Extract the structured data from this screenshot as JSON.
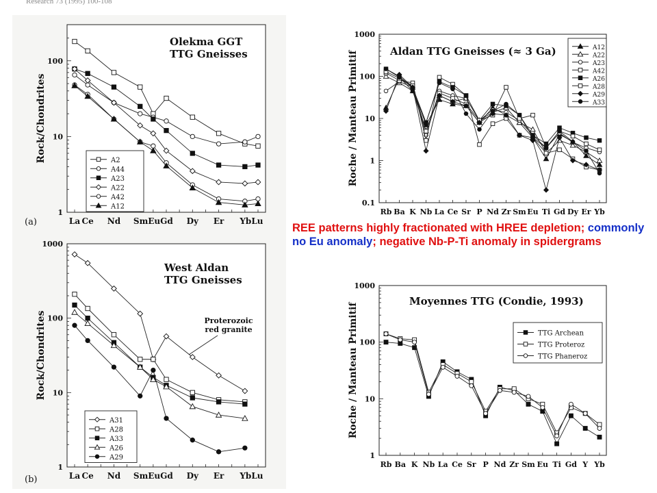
{
  "source_ref": "Research 73 (1995) 100-108",
  "note": {
    "part1": "REE patterns highly fractionated with HREE depletion; ",
    "part2": "commonly no Eu anomaly",
    "part3": "; negative Nb-P-Ti anomaly in spidergrams",
    "colors": {
      "main": "#e01010",
      "highlight": "#1530c8"
    }
  },
  "chart_data": [
    {
      "id": "olekma",
      "type": "line",
      "panel_label": "(a)",
      "title": "Olekma GGT",
      "subtitle": "TTG Gneisses",
      "ylabel": "Rock/Chondrites",
      "xlabel": "",
      "log_y": true,
      "ylim": [
        1,
        300
      ],
      "y_tick_labels": [
        "1",
        "10",
        "100"
      ],
      "y_tick_values": [
        1,
        10,
        100
      ],
      "x_positions": [
        "La",
        "Ce",
        "Pr",
        "Nd",
        "Pm",
        "Sm",
        "Eu",
        "Gd",
        "Tb",
        "Dy",
        "Ho",
        "Er",
        "Tm",
        "Yb",
        "Lu"
      ],
      "x_tick_labels": [
        "La",
        "Ce",
        "Nd",
        "Sm",
        "Eu",
        "Gd",
        "Dy",
        "Er",
        "Yb",
        "Lu"
      ],
      "x_tick_labels_display": [
        "La",
        "Ce",
        "Nd",
        "SmEuGd",
        "Dy",
        "Er",
        "YbLu"
      ],
      "legend_position": "bottom-left",
      "series": [
        {
          "name": "A2",
          "marker": "square-open",
          "values": [
            180,
            135,
            null,
            70,
            null,
            45,
            20,
            32,
            null,
            18,
            null,
            11,
            null,
            8,
            7.5
          ]
        },
        {
          "name": "A44",
          "marker": "circle-open",
          "values": [
            65,
            48,
            null,
            28,
            null,
            20,
            18,
            16,
            null,
            10,
            null,
            8,
            null,
            8.5,
            10
          ]
        },
        {
          "name": "A23",
          "marker": "square-filled",
          "values": [
            78,
            68,
            null,
            45,
            null,
            25,
            17,
            12,
            null,
            6,
            null,
            4.2,
            null,
            4,
            4.2
          ]
        },
        {
          "name": "A22",
          "marker": "diamond-open",
          "values": [
            78,
            55,
            null,
            28,
            null,
            14,
            11,
            6.5,
            null,
            3.5,
            null,
            2.5,
            null,
            2.4,
            2.5
          ]
        },
        {
          "name": "A42",
          "marker": "circle-open",
          "values": [
            48,
            36,
            null,
            17,
            null,
            8.5,
            7.5,
            4.5,
            null,
            2.3,
            null,
            1.5,
            null,
            1.4,
            1.5
          ]
        },
        {
          "name": "A12",
          "marker": "triangle-filled",
          "values": [
            47,
            34,
            null,
            17,
            null,
            8.5,
            6.5,
            4.1,
            null,
            2.1,
            null,
            1.35,
            null,
            1.25,
            1.3
          ]
        }
      ]
    },
    {
      "id": "aldan_spider",
      "type": "line",
      "panel_label": "",
      "title": "Aldan TTG Gneisses (≈ 3 Ga)",
      "subtitle": "",
      "ylabel": "Roche / Manteau Primitif",
      "xlabel": "",
      "log_y": true,
      "ylim": [
        0.1,
        1000
      ],
      "y_tick_labels": [
        "0.1",
        "1",
        "10",
        "100",
        "1000"
      ],
      "y_tick_values": [
        0.1,
        1,
        10,
        100,
        1000
      ],
      "x_tick_labels": [
        "Rb",
        "Ba",
        "K",
        "Nb",
        "La",
        "Ce",
        "Sr",
        "P",
        "Nd",
        "Zr",
        "Sm",
        "Eu",
        "Ti",
        "Gd",
        "Dy",
        "Er",
        "Yb"
      ],
      "legend_position": "top-right",
      "series": [
        {
          "name": "A12",
          "marker": "triangle-filled",
          "values": [
            18,
            90,
            55,
            7,
            28,
            22,
            20,
            8,
            18,
            12,
            8,
            3.5,
            1.1,
            4.2,
            2.8,
            1.3,
            0.8
          ]
        },
        {
          "name": "A22",
          "marker": "triangle-open",
          "values": [
            100,
            70,
            45,
            5,
            35,
            25,
            30,
            9,
            14,
            18,
            8,
            5.5,
            1.5,
            3,
            2.3,
            1.6,
            1
          ]
        },
        {
          "name": "A23",
          "marker": "circle-open",
          "values": [
            45,
            75,
            55,
            4,
            45,
            35,
            30,
            9,
            16,
            14,
            9,
            4,
            2,
            4.5,
            2.7,
            2,
            1.6
          ]
        },
        {
          "name": "A42",
          "marker": "square-open",
          "values": [
            120,
            80,
            70,
            3,
            95,
            65,
            35,
            2.4,
            7.5,
            10,
            4,
            3.5,
            1.5,
            1.8,
            1.1,
            0.7,
            0.6
          ]
        },
        {
          "name": "A26",
          "marker": "square-filled",
          "values": [
            150,
            100,
            55,
            8,
            75,
            55,
            35,
            9,
            22,
            20,
            12,
            4,
            2.5,
            6,
            4.5,
            3.5,
            3
          ]
        },
        {
          "name": "A28",
          "marker": "square-open",
          "values": [
            130,
            90,
            60,
            5,
            40,
            30,
            22,
            9,
            12,
            55,
            10,
            12,
            2,
            5,
            3.8,
            2.5,
            1.8
          ]
        },
        {
          "name": "A29",
          "marker": "diamond-filled",
          "values": [
            15,
            110,
            55,
            1.7,
            35,
            25,
            20,
            8,
            13,
            12,
            4,
            3,
            0.2,
            3.5,
            1,
            0.8,
            0.6
          ]
        },
        {
          "name": "A33",
          "marker": "circle-filled",
          "values": [
            150,
            95,
            45,
            8,
            70,
            50,
            13,
            5.5,
            15,
            22,
            12,
            3.5,
            2,
            5,
            2.8,
            1.7,
            0.5
          ]
        }
      ]
    },
    {
      "id": "west_aldan",
      "type": "line",
      "panel_label": "(b)",
      "title": "West Aldan",
      "subtitle": "TTG Gneisses",
      "annotation": [
        "Proterozoic",
        "red granite"
      ],
      "ylabel": "Rock/Chondrites",
      "xlabel": "",
      "log_y": true,
      "ylim": [
        1,
        1000
      ],
      "y_tick_labels": [
        "1",
        "10",
        "100",
        "1000"
      ],
      "y_tick_values": [
        1,
        10,
        100,
        1000
      ],
      "x_positions": [
        "La",
        "Ce",
        "Pr",
        "Nd",
        "Pm",
        "Sm",
        "Eu",
        "Gd",
        "Tb",
        "Dy",
        "Ho",
        "Er",
        "Tm",
        "Yb",
        "Lu"
      ],
      "x_tick_labels": [
        "La",
        "Ce",
        "Nd",
        "Sm",
        "Eu",
        "Gd",
        "Dy",
        "Er",
        "Yb",
        "Lu"
      ],
      "x_tick_labels_display": [
        "La",
        "Ce",
        "Nd",
        "SmEuGd",
        "Dy",
        "Er",
        "YbLu"
      ],
      "legend_position": "bottom-left",
      "series": [
        {
          "name": "A31",
          "marker": "diamond-open",
          "values": [
            720,
            550,
            null,
            250,
            null,
            115,
            28,
            57,
            null,
            30,
            null,
            17,
            null,
            10.5,
            null
          ]
        },
        {
          "name": "A28",
          "marker": "square-open",
          "values": [
            210,
            135,
            null,
            60,
            null,
            28,
            28,
            15,
            null,
            10,
            null,
            8,
            null,
            7.5,
            null
          ]
        },
        {
          "name": "A33",
          "marker": "square-filled",
          "values": [
            150,
            100,
            null,
            47,
            null,
            22,
            16,
            12.5,
            null,
            8.5,
            null,
            7.5,
            null,
            7,
            null
          ]
        },
        {
          "name": "A26",
          "marker": "triangle-open",
          "values": [
            120,
            85,
            null,
            43,
            null,
            22,
            15,
            12,
            null,
            6.5,
            null,
            5,
            null,
            4.5,
            null
          ]
        },
        {
          "name": "A29",
          "marker": "circle-filled",
          "values": [
            80,
            50,
            null,
            22,
            null,
            9,
            20,
            4.5,
            null,
            2.3,
            null,
            1.6,
            null,
            1.8,
            null
          ]
        }
      ]
    },
    {
      "id": "condie",
      "type": "line",
      "panel_label": "",
      "title": "Moyennes TTG (Condie, 1993)",
      "subtitle": "",
      "ylabel": "Roche / Manteau Primitif",
      "xlabel": "",
      "log_y": true,
      "ylim": [
        1,
        1000
      ],
      "y_tick_labels": [
        "1",
        "10",
        "100",
        "1000"
      ],
      "y_tick_values": [
        1,
        10,
        100,
        1000
      ],
      "x_tick_labels": [
        "Rb",
        "Ba",
        "K",
        "Nb",
        "La",
        "Ce",
        "Sr",
        "P",
        "Nd",
        "Zr",
        "Sm",
        "Eu",
        "Ti",
        "Gd",
        "Y",
        "Yb"
      ],
      "legend_position": "top-right",
      "series": [
        {
          "name": "TTG Archean",
          "marker": "square-filled",
          "values": [
            100,
            95,
            80,
            11,
            45,
            30,
            22,
            5,
            16,
            14,
            8,
            6,
            1.6,
            5,
            3,
            2.1
          ]
        },
        {
          "name": "TTG Proteroz",
          "marker": "square-open",
          "values": [
            140,
            115,
            110,
            13,
            40,
            28,
            20,
            6,
            15,
            15,
            10,
            8,
            2.5,
            7,
            5.5,
            3.5
          ]
        },
        {
          "name": "TTG Phaneroz",
          "marker": "circle-open",
          "values": [
            140,
            110,
            100,
            12,
            36,
            25,
            17,
            5.5,
            14,
            13,
            11,
            7,
            2.2,
            8,
            5.5,
            3
          ]
        }
      ]
    }
  ]
}
